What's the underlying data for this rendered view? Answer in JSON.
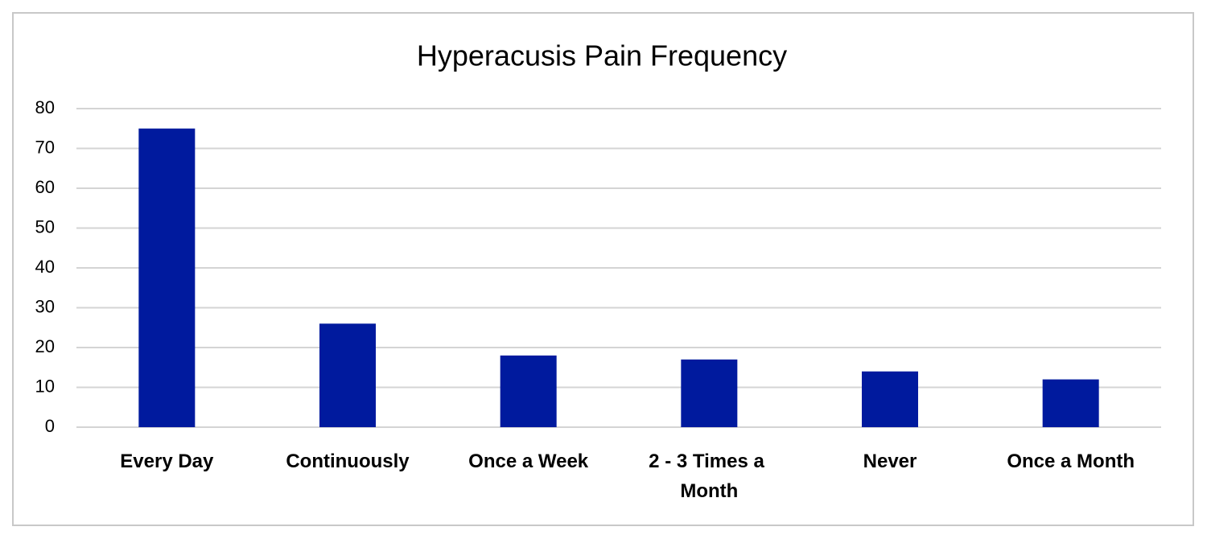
{
  "chart_data": {
    "type": "bar",
    "title": "Hyperacusis Pain Frequency",
    "categories": [
      "Every Day",
      "Continuously",
      "Once a Week",
      "2 - 3 Times a Month",
      "Never",
      "Once a Month"
    ],
    "values": [
      75,
      26,
      18,
      17,
      14,
      12
    ],
    "color": "#001a9e",
    "ylim": [
      0,
      80
    ],
    "yticks": [
      0,
      10,
      20,
      30,
      40,
      50,
      60,
      70,
      80
    ],
    "grid": true
  }
}
